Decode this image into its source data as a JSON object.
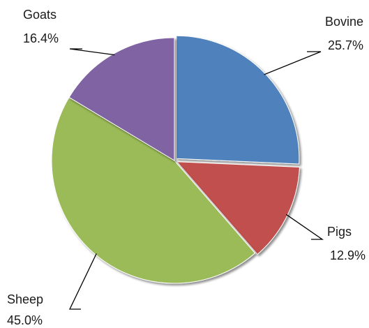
{
  "chart_data": {
    "type": "pie",
    "categories": [
      "Bovine",
      "Pigs",
      "Sheep",
      "Goats"
    ],
    "values": [
      25.7,
      12.9,
      45.0,
      16.4
    ],
    "value_labels": [
      "25.7%",
      "12.9%",
      "45.0%",
      "16.4%"
    ],
    "colors": [
      "#4F81BD",
      "#C0504D",
      "#9BBB59",
      "#8064A2"
    ],
    "start_angle": "12 o'clock",
    "direction": "clockwise",
    "legend": "none",
    "labels": "outside with leader lines",
    "title": ""
  }
}
